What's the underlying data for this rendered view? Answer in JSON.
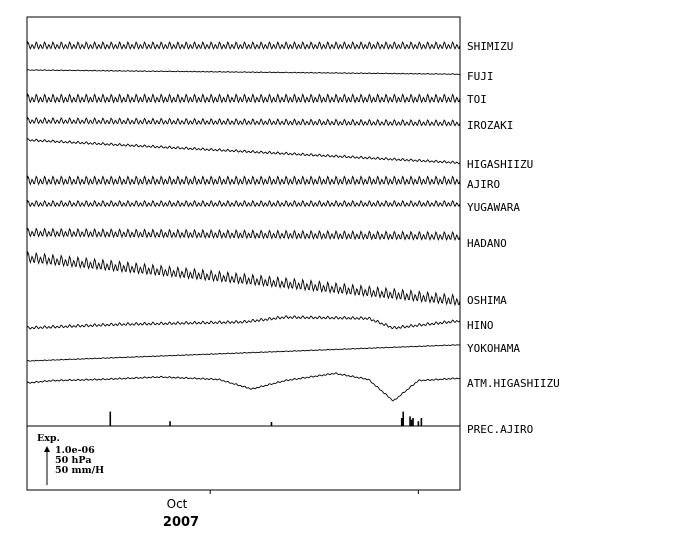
{
  "chart_data": {
    "type": "line",
    "title": "",
    "x_axis": {
      "month_label": "Oct",
      "year_label": "2007",
      "date_range": [
        "2007-09-09",
        "2007-10-31"
      ],
      "month_boundaries": [
        "2007-10-01",
        "2007-10-26"
      ]
    },
    "scale_legend": {
      "title": "Exp.",
      "lines": [
        "1.0e-06",
        "50 hPa",
        "50 mm/H"
      ]
    },
    "series": [
      {
        "name": "SHIMIZU",
        "kind": "strain",
        "start": 0.0,
        "end": 0.0,
        "drift": [],
        "tide_amp": 0.3,
        "tide_period_days": 0.5,
        "step": null
      },
      {
        "name": "FUJI",
        "kind": "strain",
        "start": 0.0,
        "end": -0.35,
        "drift": [],
        "tide_amp": 0.03,
        "tide_period_days": 0.5,
        "step": {
          "date": "2007-10-23",
          "size": -0.35
        }
      },
      {
        "name": "TOI",
        "kind": "strain",
        "start": 0.0,
        "end": 0.0,
        "drift": [],
        "tide_amp": 0.35,
        "tide_period_days": 0.5,
        "step": null
      },
      {
        "name": "IROZAKI",
        "kind": "strain",
        "start": 0.0,
        "end": -0.2,
        "drift": [],
        "tide_amp": 0.25,
        "tide_period_days": 0.5,
        "step": null
      },
      {
        "name": "HIGASHIIZU",
        "kind": "strain",
        "start": 0.0,
        "end": -1.9,
        "drift": [],
        "tide_amp": 0.1,
        "tide_period_days": 0.5,
        "step": null
      },
      {
        "name": "AJIRO",
        "kind": "strain",
        "start": 0.0,
        "end": 0.0,
        "drift": [],
        "tide_amp": 0.35,
        "tide_period_days": 0.5,
        "step": null
      },
      {
        "name": "YUGAWARA",
        "kind": "strain",
        "start": 0.0,
        "end": 0.0,
        "drift": [],
        "tide_amp": 0.25,
        "tide_period_days": 0.5,
        "step": null
      },
      {
        "name": "HADANO",
        "kind": "strain",
        "start": 0.0,
        "end": -0.3,
        "drift": [],
        "tide_amp": 0.35,
        "tide_period_days": 0.5,
        "step": null
      },
      {
        "name": "OSHIMA",
        "kind": "strain",
        "start": 0.0,
        "end": -3.6,
        "drift": [],
        "tide_amp": 0.45,
        "tide_period_days": 0.5,
        "step": null
      },
      {
        "name": "HINO",
        "kind": "strain",
        "start": 0.0,
        "end": 0.0,
        "drift": [
          [
            "2007-09-09",
            0.0
          ],
          [
            "2007-09-20",
            0.3
          ],
          [
            "2007-10-05",
            0.5
          ],
          [
            "2007-10-10",
            0.9
          ],
          [
            "2007-10-20",
            0.8
          ],
          [
            "2007-10-23",
            0.0
          ],
          [
            "2007-10-31",
            0.6
          ]
        ],
        "tide_amp": 0.12,
        "tide_period_days": 0.5,
        "step": null
      },
      {
        "name": "YOKOHAMA",
        "kind": "strain",
        "start": 0.0,
        "end": 1.35,
        "drift": [],
        "tide_amp": 0.03,
        "tide_period_days": 0.5,
        "step": null
      },
      {
        "name": "ATM.HIGASHIIZU",
        "kind": "pressure",
        "start": 0.0,
        "end": 0.0,
        "drift": [
          [
            "2007-09-09",
            0.0
          ],
          [
            "2007-09-12",
            0.2
          ],
          [
            "2007-09-18",
            0.3
          ],
          [
            "2007-09-25",
            0.5
          ],
          [
            "2007-10-02",
            0.3
          ],
          [
            "2007-10-06",
            -0.5
          ],
          [
            "2007-10-10",
            0.2
          ],
          [
            "2007-10-16",
            0.8
          ],
          [
            "2007-10-20",
            0.3
          ],
          [
            "2007-10-23",
            -1.5
          ],
          [
            "2007-10-26",
            0.2
          ],
          [
            "2007-10-31",
            0.4
          ]
        ],
        "tide_amp": 0.06,
        "tide_period_days": 0.5,
        "step": null
      },
      {
        "name": "PREC.AJIRO",
        "kind": "precipitation",
        "bars": [
          {
            "date": "2007-09-19",
            "value": 0.9
          },
          {
            "date": "2007-09-26",
            "value": 0.3
          },
          {
            "date": "2007-10-08",
            "value": 0.25
          },
          {
            "date": "2007-10-24",
            "value": 0.5
          },
          {
            "date": "2007-10-24",
            "value": 0.9
          },
          {
            "date": "2007-10-25",
            "value": 0.5
          },
          {
            "date": "2007-10-25",
            "value": 0.6
          },
          {
            "date": "2007-10-25",
            "value": 0.4
          },
          {
            "date": "2007-10-26",
            "value": 0.5
          },
          {
            "date": "2007-10-26",
            "value": 0.3
          }
        ]
      }
    ]
  }
}
